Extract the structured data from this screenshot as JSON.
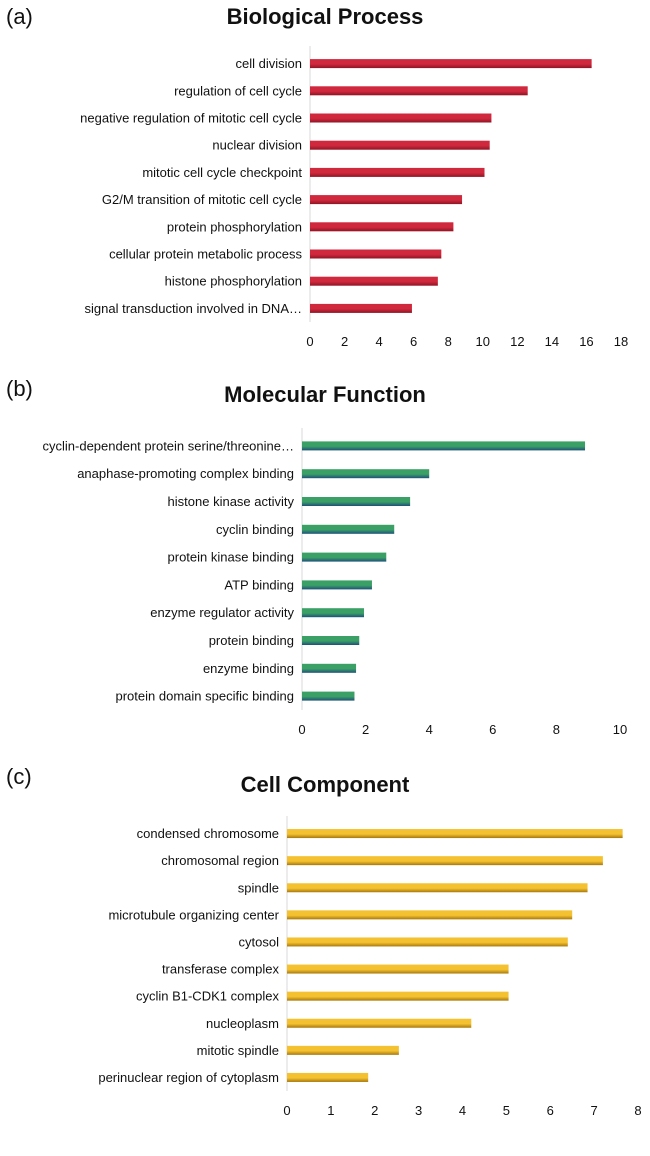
{
  "panels": [
    {
      "label": "(a)",
      "chart_data": {
        "type": "bar",
        "orientation": "horizontal",
        "title": "Biological Process",
        "categories": [
          "cell division",
          "regulation of cell cycle",
          "negative regulation of mitotic cell cycle",
          "nuclear division",
          "mitotic cell cycle checkpoint",
          "G2/M transition of mitotic cell cycle",
          "protein phosphorylation",
          "cellular protein metabolic process",
          "histone phosphorylation",
          "signal transduction involved in DNA…"
        ],
        "values": [
          16.3,
          12.6,
          10.5,
          10.4,
          10.1,
          8.8,
          8.3,
          7.6,
          7.4,
          5.9
        ],
        "xticks": [
          "0",
          "2",
          "4",
          "6",
          "8",
          "10",
          "12",
          "14",
          "16",
          "18"
        ],
        "xlim": [
          0,
          18
        ],
        "color": "#d0283c",
        "color_dark": "#8e1424"
      }
    },
    {
      "label": "(b)",
      "chart_data": {
        "type": "bar",
        "orientation": "horizontal",
        "title": "Molecular Function",
        "categories": [
          "cyclin-dependent protein serine/threonine…",
          "anaphase-promoting complex binding",
          "histone kinase activity",
          "cyclin binding",
          "protein kinase binding",
          "ATP binding",
          "enzyme regulator activity",
          "protein binding",
          "enzyme binding",
          "protein domain specific binding"
        ],
        "values": [
          8.9,
          4.0,
          3.4,
          2.9,
          2.65,
          2.2,
          1.95,
          1.8,
          1.7,
          1.65
        ],
        "xticks": [
          "0",
          "2",
          "4",
          "6",
          "8",
          "10"
        ],
        "xlim": [
          0,
          10
        ],
        "color": "#3aa065",
        "color_dark": "#1f4f7a"
      }
    },
    {
      "label": "(c)",
      "chart_data": {
        "type": "bar",
        "orientation": "horizontal",
        "title": "Cell Component",
        "categories": [
          "condensed chromosome",
          "chromosomal region",
          "spindle",
          "microtubule organizing center",
          "cytosol",
          "transferase complex",
          "cyclin B1-CDK1 complex",
          "nucleoplasm",
          "mitotic spindle",
          "perinuclear region of cytoplasm"
        ],
        "values": [
          7.65,
          7.2,
          6.85,
          6.5,
          6.4,
          5.05,
          5.05,
          4.2,
          2.55,
          1.85
        ],
        "xticks": [
          "0",
          "1",
          "2",
          "3",
          "4",
          "5",
          "6",
          "7",
          "8"
        ],
        "xlim": [
          0,
          8
        ],
        "color": "#f4c230",
        "color_dark": "#a8780c"
      }
    }
  ]
}
